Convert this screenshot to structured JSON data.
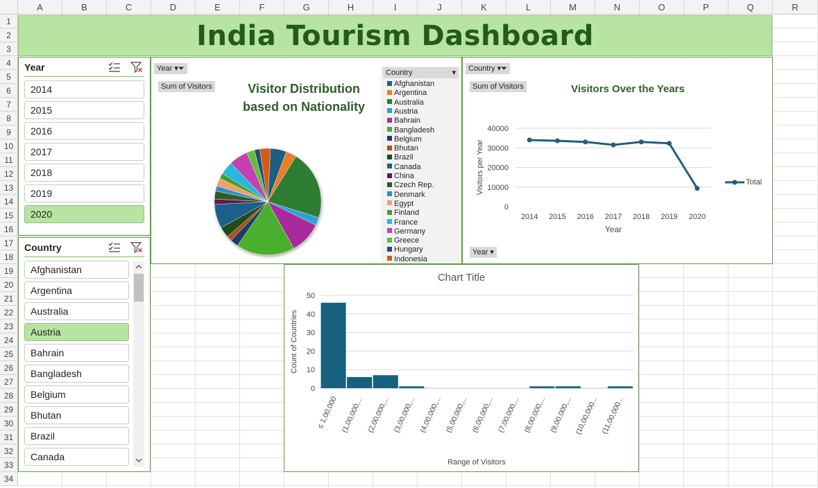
{
  "sheet": {
    "columns": [
      "A",
      "B",
      "C",
      "D",
      "E",
      "F",
      "G",
      "H",
      "I",
      "J",
      "K",
      "L",
      "M",
      "N",
      "O",
      "P",
      "Q",
      "R"
    ],
    "rows": [
      "1",
      "2",
      "3",
      "4",
      "5",
      "6",
      "7",
      "8",
      "9",
      "10",
      "11",
      "12",
      "13",
      "14",
      "15",
      "16",
      "17",
      "18",
      "19",
      "20",
      "21",
      "22",
      "23",
      "24",
      "25",
      "26",
      "27",
      "28",
      "29",
      "30",
      "31",
      "32",
      "33",
      "34"
    ]
  },
  "dashboard_title": "India Tourism Dashboard",
  "year_slicer": {
    "header": "Year",
    "items": [
      {
        "label": "2014",
        "selected": false
      },
      {
        "label": "2015",
        "selected": false
      },
      {
        "label": "2016",
        "selected": false
      },
      {
        "label": "2017",
        "selected": false
      },
      {
        "label": "2018",
        "selected": false
      },
      {
        "label": "2019",
        "selected": false
      },
      {
        "label": "2020",
        "selected": true
      }
    ]
  },
  "country_slicer": {
    "header": "Country",
    "items": [
      {
        "label": "Afghanistan",
        "selected": false
      },
      {
        "label": "Argentina",
        "selected": false
      },
      {
        "label": "Australia",
        "selected": false
      },
      {
        "label": "Austria",
        "selected": true
      },
      {
        "label": "Bahrain",
        "selected": false
      },
      {
        "label": "Bangladesh",
        "selected": false
      },
      {
        "label": "Belgium",
        "selected": false
      },
      {
        "label": "Bhutan",
        "selected": false
      },
      {
        "label": "Brazil",
        "selected": false
      },
      {
        "label": "Canada",
        "selected": false
      }
    ]
  },
  "pie_panel": {
    "year_button": "Year",
    "country_button": "Country",
    "sum_button": "Sum of Visitors",
    "title_line1": "Visitor Distribution",
    "title_line2": "based on Nationality"
  },
  "line_panel": {
    "country_button": "Country",
    "sum_button": "Sum of Visitors",
    "year_button": "Year",
    "title": "Visitors Over the Years"
  },
  "hist_panel": {
    "title": "Chart Title"
  },
  "colors": {
    "banner": "#b7e4a2",
    "title_green": "#235a1d",
    "line_series": "#1f5f7f",
    "bar": "#17607f",
    "slicer_selected": "#b7e4a2"
  },
  "chart_data": [
    {
      "type": "pie",
      "title": "Visitor Distribution based on Nationality",
      "legend_title": "Country",
      "legend_position": "right",
      "categories": [
        "Afghanistan",
        "Argentina",
        "Australia",
        "Austria",
        "Bahrain",
        "Bangladesh",
        "Belgium",
        "Bhutan",
        "Brazil",
        "Canada",
        "China",
        "Czech Rep.",
        "Denmark",
        "Egypt",
        "Finland",
        "France",
        "Germany",
        "Greece",
        "Hungary",
        "Indonesia"
      ],
      "slice_colors": [
        "#1f5f7f",
        "#e87d2a",
        "#2e7d32",
        "#29a3d6",
        "#a9299a",
        "#4caf2e",
        "#1b3d66",
        "#b0501c",
        "#1d4d1d",
        "#1b5e88",
        "#5c1a52",
        "#2f5c22",
        "#2f8fc7",
        "#f29e6b",
        "#43a02a",
        "#29b6e0",
        "#c43fb3",
        "#5cbf3c",
        "#244c7a",
        "#d45a1e"
      ],
      "values": [
        6,
        4,
        26,
        3,
        12,
        22,
        3,
        2,
        4,
        9,
        2,
        3,
        2,
        3,
        2,
        5,
        7,
        3,
        2,
        4
      ]
    },
    {
      "type": "line",
      "title": "Visitors Over the Years",
      "xlabel": "Year",
      "ylabel": "Visitors per Year",
      "ylim": [
        0,
        40000
      ],
      "yticks": [
        0,
        10000,
        20000,
        30000,
        40000
      ],
      "x": [
        "2014",
        "2015",
        "2016",
        "2017",
        "2018",
        "2019",
        "2020"
      ],
      "series": [
        {
          "name": "Total",
          "values": [
            34000,
            33600,
            33000,
            31500,
            33000,
            32300,
            9300
          ]
        }
      ],
      "legend_position": "right",
      "grid": true
    },
    {
      "type": "bar",
      "title": "Chart Title",
      "xlabel": "Range of Visitors",
      "ylabel": "Count of Countries",
      "ylim": [
        0,
        50
      ],
      "yticks": [
        0,
        10,
        20,
        30,
        40,
        50
      ],
      "categories": [
        "≤ 1,00,000",
        "(1,00,000,...",
        "(2,00,000,...",
        "(3,00,000,...",
        "(4,00,000,...",
        "(5,00,000,...",
        "(6,00,000,...",
        "(7,00,000,...",
        "(8,00,000,...",
        "(9,00,000,...",
        "(10,00,000...",
        "(11,00,000..."
      ],
      "values": [
        46,
        6,
        7,
        1,
        0,
        0,
        0,
        0,
        1,
        1,
        0,
        1
      ],
      "grid": true
    }
  ]
}
